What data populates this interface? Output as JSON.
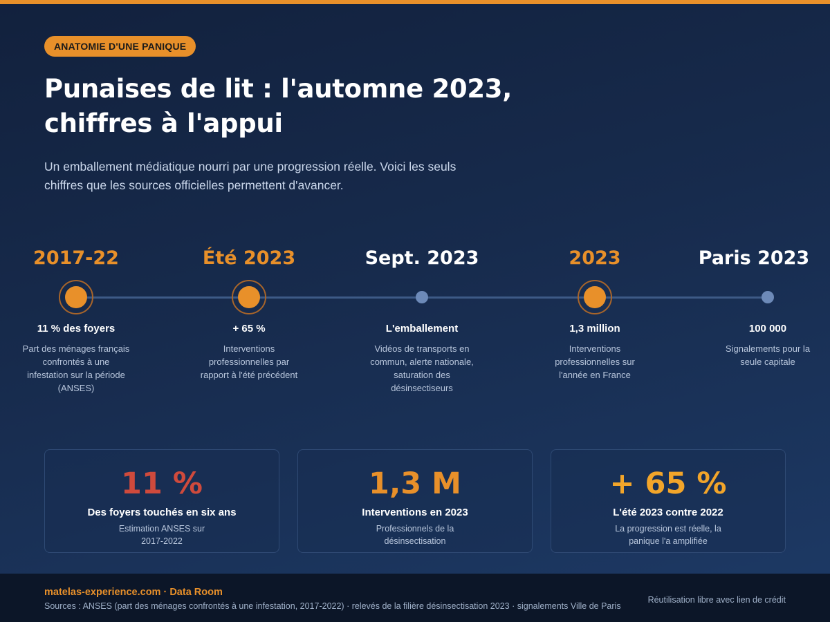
{
  "header": {
    "kicker": "ANATOMIE D'UNE PANIQUE",
    "title": "Punaises de lit : l'automne 2023, chiffres à l'appui",
    "subtitle": "Un emballement médiatique nourri par une progression réelle. Voici les seuls chiffres que les sources officielles permettent d'avancer."
  },
  "timeline": [
    {
      "year": "2017-22",
      "year_color": "orange",
      "marker": "large-orange",
      "value": "11 % des foyers",
      "desc": "Part des ménages français confrontés à une infestation sur la période (ANSES)"
    },
    {
      "year": "Été 2023",
      "year_color": "orange",
      "marker": "large-orange",
      "value": "+ 65 %",
      "desc": "Interventions professionnelles par rapport à l'été précédent"
    },
    {
      "year": "Sept. 2023",
      "year_color": "white",
      "marker": "small-blue",
      "value": "L'emballement",
      "desc": "Vidéos de transports en commun, alerte nationale, saturation des désinsectiseurs"
    },
    {
      "year": "2023",
      "year_color": "orange",
      "marker": "large-orange",
      "value": "1,3 million",
      "desc": "Interventions professionnelles sur l'année en France"
    },
    {
      "year": "Paris 2023",
      "year_color": "white",
      "marker": "small-blue",
      "value": "100 000",
      "desc": "Signalements pour la seule capitale"
    }
  ],
  "cards": [
    {
      "big": "11 %",
      "color": "#cf4a3c",
      "label": "Des foyers touchés en six ans",
      "note": "Estimation ANSES sur 2017-2022"
    },
    {
      "big": "1,3 M",
      "color": "#e8902a",
      "label": "Interventions en 2023",
      "note": "Professionnels de la désinsectisation"
    },
    {
      "big": "+ 65 %",
      "color": "#f2a52a",
      "label": "L'été 2023 contre 2022",
      "note": "La progression est réelle, la panique l'a amplifiée"
    }
  ],
  "footer": {
    "brand": "matelas-experience.com · Data Room",
    "sources": "Sources : ANSES (part des ménages confrontés à une infestation, 2017-2022) · relevés de la filière désinsectisation 2023 · signalements Ville de Paris",
    "license": "Réutilisation libre avec lien de crédit"
  },
  "colors": {
    "accent": "#e8902a",
    "background": "#172b4d",
    "line": "#3d5a86",
    "dot_small": "#6d8ab8"
  }
}
